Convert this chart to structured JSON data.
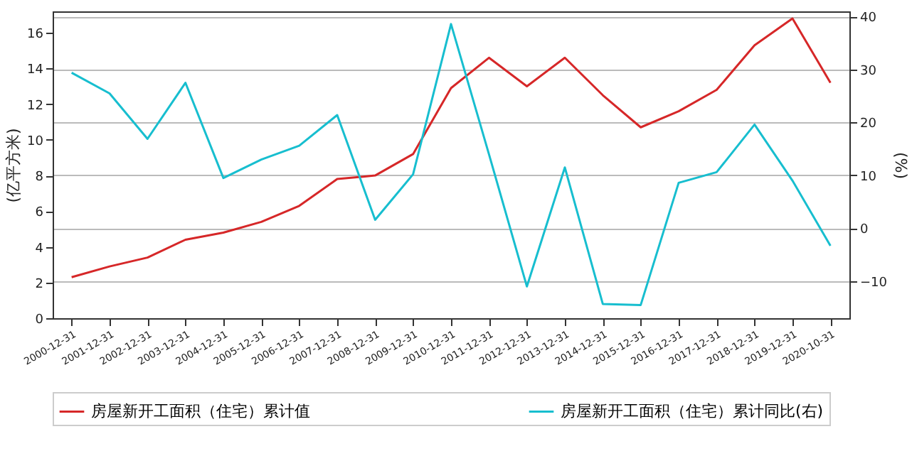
{
  "chart_data": {
    "type": "line",
    "categories": [
      "2000-12-31",
      "2001-12-31",
      "2002-12-31",
      "2003-12-31",
      "2004-12-31",
      "2005-12-31",
      "2006-12-31",
      "2007-12-31",
      "2008-12-31",
      "2009-12-31",
      "2010-12-31",
      "2011-12-31",
      "2012-12-31",
      "2013-12-31",
      "2014-12-31",
      "2015-12-31",
      "2016-12-31",
      "2017-12-31",
      "2018-12-31",
      "2019-12-31",
      "2020-10-31"
    ],
    "series": [
      {
        "name": "房屋新开工面积（住宅）累计值",
        "color": "#d62728",
        "values": [
          2.3,
          2.9,
          3.4,
          4.4,
          4.8,
          5.4,
          6.3,
          7.8,
          8.0,
          9.2,
          12.9,
          14.6,
          13.0,
          14.6,
          12.5,
          10.7,
          11.6,
          12.8,
          15.3,
          16.8,
          13.2
        ]
      },
      {
        "name": "房屋新开工面积（住宅）累计同比(右)",
        "color": "#17becf",
        "axis": "y2",
        "values": [
          29.4,
          25.5,
          16.9,
          27.5,
          9.5,
          13,
          15.6,
          21.4,
          1.6,
          10.2,
          38.6,
          14,
          -11,
          11.5,
          -14.3,
          -14.5,
          8.6,
          10.6,
          19.6,
          9,
          -3.3
        ]
      }
    ],
    "ylabel": "(亿平方米)",
    "y2label": "(%)",
    "ylim": [
      0,
      17.2
    ],
    "yticks": [
      0,
      2,
      4,
      6,
      8,
      10,
      12,
      14,
      16
    ],
    "y2lim": [
      -17,
      41
    ],
    "y2ticks": [
      -10,
      0,
      10,
      20,
      30,
      40
    ],
    "grid": "y",
    "legend": "bottom"
  }
}
